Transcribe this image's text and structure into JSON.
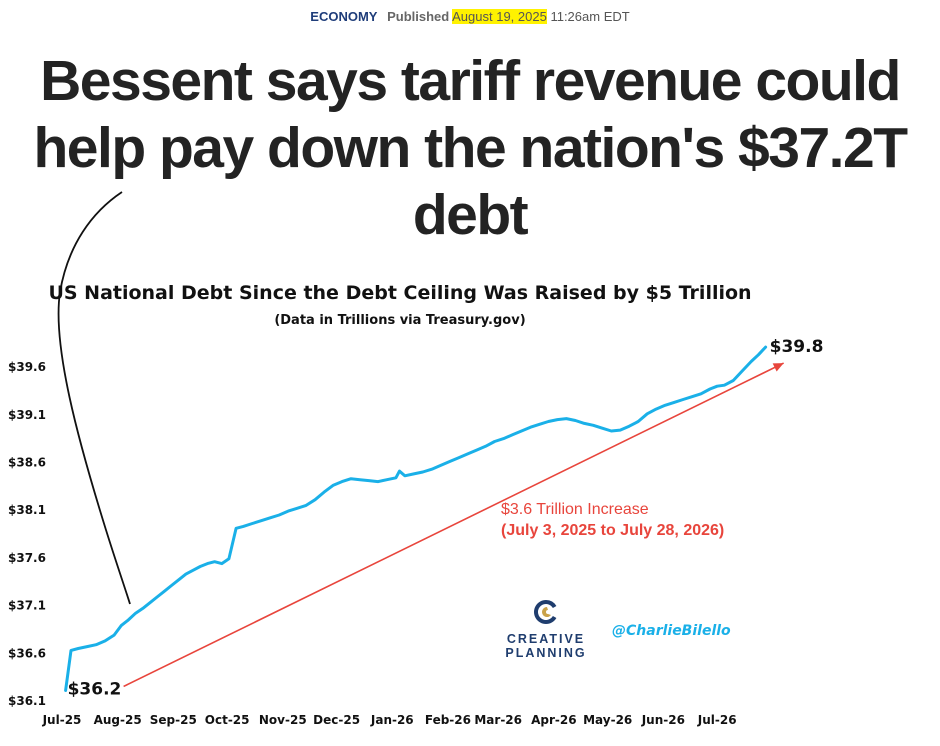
{
  "byline": {
    "section": "ECONOMY",
    "published_label": "Published",
    "date": "August 19, 2025",
    "time": "11:26am EDT"
  },
  "headline": "Bessent says tariff revenue could help pay down the nation's $37.2T debt",
  "chart_data": {
    "type": "line",
    "title": "US National Debt Since the Debt Ceiling Was Raised by $5 Trillion",
    "subtitle": "(Data in Trillions via Treasury.gov)",
    "x_tick_labels": [
      "Jul-25",
      "Aug-25",
      "Sep-25",
      "Oct-25",
      "Nov-25",
      "Dec-25",
      "Jan-26",
      "Feb-26",
      "Mar-26",
      "Apr-26",
      "May-26",
      "Jun-26",
      "Jul-26"
    ],
    "y_tick_labels": [
      "$36.1",
      "$36.6",
      "$37.1",
      "$37.6",
      "$38.1",
      "$38.6",
      "$39.1",
      "$39.6"
    ],
    "y_ticks": [
      36.1,
      36.6,
      37.1,
      37.6,
      38.1,
      38.6,
      39.1,
      39.6
    ],
    "ylim": [
      36.1,
      40.0
    ],
    "x_range": [
      "2025-07-01",
      "2026-08-05"
    ],
    "series": [
      {
        "color": "#1ab0e8",
        "points": [
          [
            "2025-07-03",
            36.2
          ],
          [
            "2025-07-06",
            36.62
          ],
          [
            "2025-07-10",
            36.64
          ],
          [
            "2025-07-15",
            36.66
          ],
          [
            "2025-07-20",
            36.68
          ],
          [
            "2025-07-25",
            36.72
          ],
          [
            "2025-07-30",
            36.78
          ],
          [
            "2025-08-03",
            36.88
          ],
          [
            "2025-08-07",
            36.94
          ],
          [
            "2025-08-11",
            37.01
          ],
          [
            "2025-08-15",
            37.06
          ],
          [
            "2025-08-19",
            37.12
          ],
          [
            "2025-08-23",
            37.18
          ],
          [
            "2025-08-27",
            37.24
          ],
          [
            "2025-08-31",
            37.3
          ],
          [
            "2025-09-04",
            37.36
          ],
          [
            "2025-09-08",
            37.42
          ],
          [
            "2025-09-12",
            37.46
          ],
          [
            "2025-09-16",
            37.5
          ],
          [
            "2025-09-20",
            37.53
          ],
          [
            "2025-09-24",
            37.55
          ],
          [
            "2025-09-28",
            37.53
          ],
          [
            "2025-10-02",
            37.58
          ],
          [
            "2025-10-06",
            37.9
          ],
          [
            "2025-10-10",
            37.92
          ],
          [
            "2025-10-15",
            37.95
          ],
          [
            "2025-10-20",
            37.98
          ],
          [
            "2025-10-25",
            38.01
          ],
          [
            "2025-10-30",
            38.04
          ],
          [
            "2025-11-04",
            38.08
          ],
          [
            "2025-11-09",
            38.11
          ],
          [
            "2025-11-14",
            38.14
          ],
          [
            "2025-11-19",
            38.2
          ],
          [
            "2025-11-24",
            38.28
          ],
          [
            "2025-11-29",
            38.35
          ],
          [
            "2025-12-04",
            38.39
          ],
          [
            "2025-12-09",
            38.42
          ],
          [
            "2025-12-14",
            38.41
          ],
          [
            "2025-12-19",
            38.4
          ],
          [
            "2025-12-24",
            38.39
          ],
          [
            "2025-12-29",
            38.41
          ],
          [
            "2026-01-03",
            38.43
          ],
          [
            "2026-01-05",
            38.5
          ],
          [
            "2026-01-08",
            38.45
          ],
          [
            "2026-01-13",
            38.47
          ],
          [
            "2026-01-18",
            38.49
          ],
          [
            "2026-01-23",
            38.52
          ],
          [
            "2026-01-28",
            38.56
          ],
          [
            "2026-02-02",
            38.6
          ],
          [
            "2026-02-07",
            38.64
          ],
          [
            "2026-02-12",
            38.68
          ],
          [
            "2026-02-17",
            38.72
          ],
          [
            "2026-02-22",
            38.76
          ],
          [
            "2026-02-27",
            38.81
          ],
          [
            "2026-03-04",
            38.84
          ],
          [
            "2026-03-09",
            38.88
          ],
          [
            "2026-03-14",
            38.92
          ],
          [
            "2026-03-19",
            38.96
          ],
          [
            "2026-03-24",
            38.99
          ],
          [
            "2026-03-29",
            39.02
          ],
          [
            "2026-04-03",
            39.04
          ],
          [
            "2026-04-08",
            39.05
          ],
          [
            "2026-04-13",
            39.03
          ],
          [
            "2026-04-18",
            39.0
          ],
          [
            "2026-04-23",
            38.98
          ],
          [
            "2026-04-28",
            38.95
          ],
          [
            "2026-05-03",
            38.92
          ],
          [
            "2026-05-08",
            38.93
          ],
          [
            "2026-05-13",
            38.97
          ],
          [
            "2026-05-18",
            39.02
          ],
          [
            "2026-05-23",
            39.1
          ],
          [
            "2026-05-28",
            39.15
          ],
          [
            "2026-06-02",
            39.19
          ],
          [
            "2026-06-07",
            39.22
          ],
          [
            "2026-06-12",
            39.25
          ],
          [
            "2026-06-17",
            39.28
          ],
          [
            "2026-06-22",
            39.31
          ],
          [
            "2026-06-27",
            39.36
          ],
          [
            "2026-07-01",
            39.39
          ],
          [
            "2026-07-05",
            39.4
          ],
          [
            "2026-07-10",
            39.45
          ],
          [
            "2026-07-15",
            39.55
          ],
          [
            "2026-07-20",
            39.65
          ],
          [
            "2026-07-24",
            39.72
          ],
          [
            "2026-07-28",
            39.8
          ]
        ]
      }
    ],
    "start_label": "$36.2",
    "end_label": "$39.8",
    "annotation": {
      "line1": "$3.6 Trillion Increase",
      "line2": "(July 3, 2025 to July 28, 2026)",
      "color": "#e8453c"
    },
    "grid": false
  },
  "branding": {
    "logo_line1": "CREATIVE",
    "logo_line2": "PLANNING",
    "handle": "@CharlieBilello",
    "handle_color": "#1ab0e8"
  }
}
